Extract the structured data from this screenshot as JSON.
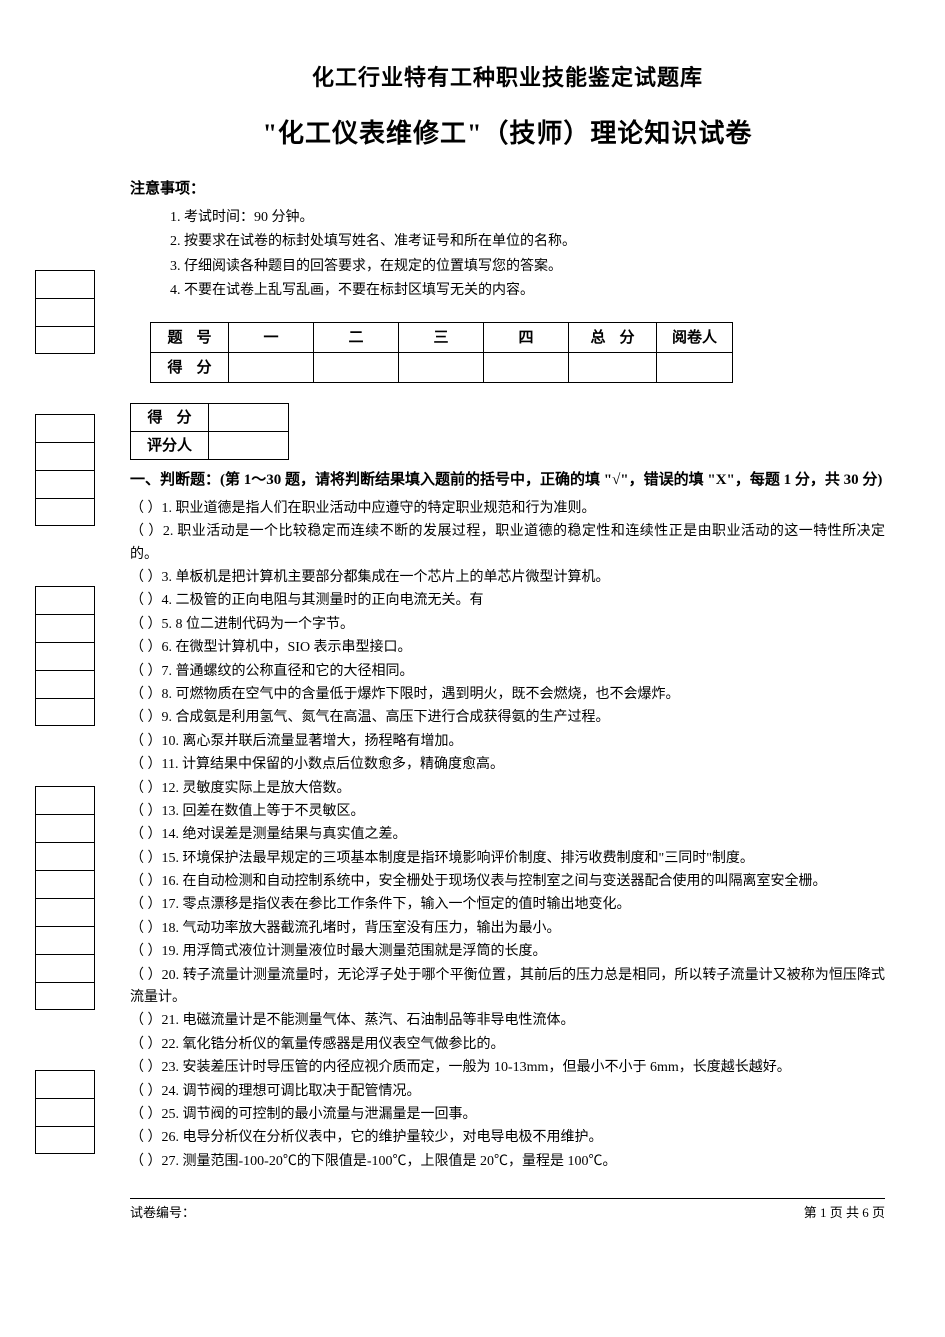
{
  "titles": {
    "main": "化工行业特有工种职业技能鉴定试题库",
    "sub": "\"化工仪表维修工\"（技师）理论知识试卷"
  },
  "notice": {
    "label": "注意事项：",
    "items": [
      "1. 考试时间：90 分钟。",
      "2. 按要求在试卷的标封处填写姓名、准考证号和所在单位的名称。",
      "3. 仔细阅读各种题目的回答要求，在规定的位置填写您的答案。",
      "4. 不要在试卷上乱写乱画，不要在标封区填写无关的内容。"
    ]
  },
  "score_table": {
    "row1_label": "题号",
    "cols": [
      "一",
      "二",
      "三",
      "四"
    ],
    "total_label": "总分",
    "reviewer_label": "阅卷人",
    "row2_label": "得分"
  },
  "mini_table": {
    "r1": "得分",
    "r2": "评分人"
  },
  "section1": {
    "header": "一、判断题：(第 1～30 题，请将判断结果填入题前的括号中，正确的填 \"√\"，错误的填 \"X\"，每题 1 分，共 30 分)",
    "questions": [
      "（  ）1. 职业道德是指人们在职业活动中应遵守的特定职业规范和行为准则。",
      "（  ）2. 职业活动是一个比较稳定而连续不断的发展过程，职业道德的稳定性和连续性正是由职业活动的这一特性所决定的。",
      "（  ）3. 单板机是把计算机主要部分都集成在一个芯片上的单芯片微型计算机。",
      "（  ）4. 二极管的正向电阻与其测量时的正向电流无关。有",
      "（  ）5. 8 位二进制代码为一个字节。",
      "（  ）6. 在微型计算机中，SIO 表示串型接口。",
      "（  ）7. 普通螺纹的公称直径和它的大径相同。",
      "（  ）8. 可燃物质在空气中的含量低于爆炸下限时，遇到明火，既不会燃烧，也不会爆炸。",
      "（  ）9. 合成氨是利用氢气、氮气在高温、高压下进行合成获得氨的生产过程。",
      "（  ）10. 离心泵并联后流量显著增大，扬程略有增加。",
      "（  ）11. 计算结果中保留的小数点后位数愈多，精确度愈高。",
      "（  ）12. 灵敏度实际上是放大倍数。",
      "（  ）13. 回差在数值上等于不灵敏区。",
      "（  ）14. 绝对误差是测量结果与真实值之差。",
      "（  ）15. 环境保护法最早规定的三项基本制度是指环境影响评价制度、排污收费制度和\"三同时\"制度。",
      "（  ）16. 在自动检测和自动控制系统中，安全栅处于现场仪表与控制室之间与变送器配合使用的叫隔离室安全栅。",
      "（  ）17. 零点漂移是指仪表在参比工作条件下，输入一个恒定的值时输出地变化。",
      "（  ）18. 气动功率放大器截流孔堵时，背压室没有压力，输出为最小。",
      "（  ）19. 用浮筒式液位计测量液位时最大测量范围就是浮筒的长度。",
      "（  ）20. 转子流量计测量流量时，无论浮子处于哪个平衡位置，其前后的压力总是相同，所以转子流量计又被称为恒压降式流量计。",
      "（  ）21. 电磁流量计是不能测量气体、蒸汽、石油制品等非导电性流体。",
      "（  ）22. 氧化锆分析仪的氧量传感器是用仪表空气做参比的。",
      "（  ）23. 安装差压计时导压管的内径应视介质而定，一般为 10-13mm，但最小不小于 6mm，长度越长越好。",
      "（  ）24. 调节阀的理想可调比取决于配管情况。",
      "（  ）25. 调节阀的可控制的最小流量与泄漏量是一回事。",
      "（  ）26. 电导分析仪在分析仪表中，它的维护量较少，对电导电极不用维护。",
      "（  ）27. 测量范围-100-20℃的下限值是-100℃，上限值是 20℃，量程是 100℃。"
    ]
  },
  "footer": {
    "left": "试卷编号：",
    "right": "第 1 页  共 6 页"
  }
}
